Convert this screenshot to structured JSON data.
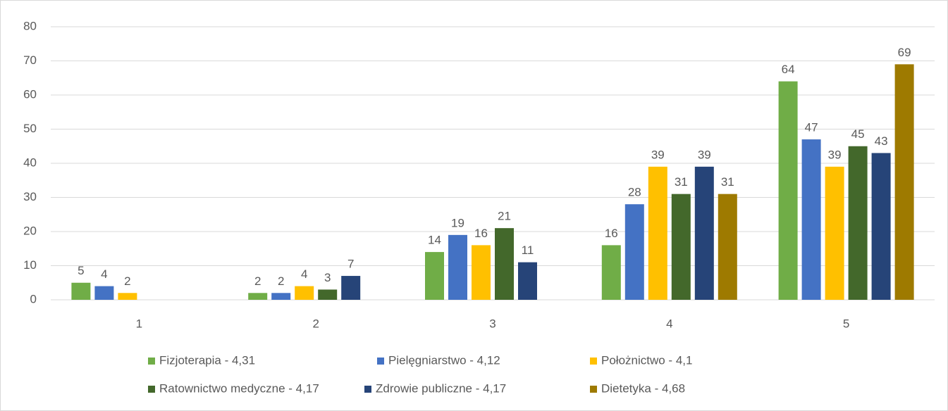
{
  "chart_data": {
    "type": "bar",
    "categories": [
      "1",
      "2",
      "3",
      "4",
      "5"
    ],
    "series": [
      {
        "name": "Fizjoterapia - 4,31",
        "color": "#70ad47",
        "values": [
          5,
          2,
          14,
          16,
          64
        ]
      },
      {
        "name": "Pielęgniarstwo - 4,12",
        "color": "#4472c4",
        "values": [
          4,
          2,
          19,
          28,
          47
        ]
      },
      {
        "name": "Położnictwo - 4,1",
        "color": "#ffc000",
        "values": [
          2,
          4,
          16,
          39,
          39
        ]
      },
      {
        "name": "Ratownictwo medyczne - 4,17",
        "color": "#43682b",
        "values": [
          null,
          3,
          21,
          31,
          45
        ]
      },
      {
        "name": "Zdrowie publiczne - 4,17",
        "color": "#264478",
        "values": [
          null,
          7,
          11,
          39,
          43
        ]
      },
      {
        "name": "Dietetyka - 4,68",
        "color": "#9e7a00",
        "values": [
          null,
          null,
          null,
          31,
          69
        ]
      }
    ],
    "ylim": [
      0,
      80
    ],
    "yticks": [
      0,
      10,
      20,
      30,
      40,
      50,
      60,
      70,
      80
    ],
    "grid": true
  }
}
